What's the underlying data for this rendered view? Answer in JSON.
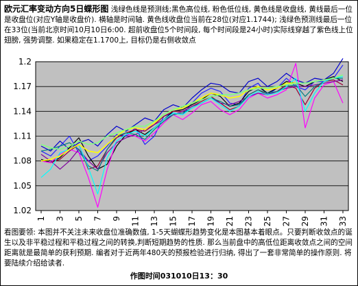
{
  "header": {
    "title": "欧元汇率变动方向5日蝶形图",
    "text": "浅绿色线是预测线;黑色高位线, 粉色低位线, 黄色线是收盘线, 黄线最后一位是收盘位(对应Y轴是收盘价). 横轴是时间轴. 黄色线收盘位当前在28位(对应1.1744); 浅绿色预测线最后一位在33位(当前北京时间10月10日6:00. 超前收盘位5个时间段, 每个时间段是24小时)实际线穿越了紫色线上位翅膀, 强势调整. 如果稳定在1.1700上, 目标仍是右侧收敛点"
  },
  "footer": {
    "text": "看图要领: 本图并不关注未来收盘位准确数值, 1-5天蝴蝶形趋势变化是本图基本着眼点。只要判断收敛点的诞生以及非平稳过程和平稳过程之间的转换,判断短期趋势的性质. 那么当前盘中的高低位距离收敛点之间的空间距离就是最简单的获利预期. 编者对于近两年480天的预报检验进行归纳, 得出了一套非常简单的操作原则. 将要陆续介绍给读者.",
    "time": "作图时间031010日13：30"
  },
  "colors": {
    "plot_bg": "#c0c0c0",
    "black": "#000000",
    "navy": "#0000cc",
    "blue": "#2222ff",
    "yellow": "#ffff00",
    "cyan": "#00ffff",
    "magenta": "#ff00ff",
    "dark_red": "#990033",
    "purple": "#8000a0",
    "teal": "#008080",
    "light_green": "#80ff80"
  },
  "chart_data": {
    "type": "line",
    "ylim": [
      1.02,
      1.2
    ],
    "yticks": [
      "1.02",
      "1.05",
      "1.08",
      "1.11",
      "1.14",
      "1.17",
      "1.2"
    ],
    "xlim": [
      1,
      33
    ],
    "xticks": [
      "1",
      "3",
      "5",
      "7",
      "9",
      "11",
      "13",
      "15",
      "17",
      "19",
      "21",
      "23",
      "25",
      "27",
      "29",
      "31",
      "33"
    ],
    "grid": "horizontal",
    "series": [
      {
        "color": "navy",
        "x": [
          1,
          2,
          3,
          4,
          5,
          6,
          7,
          8,
          9,
          10,
          11,
          12,
          13,
          14,
          15,
          16,
          17,
          18,
          19,
          20,
          21,
          22,
          23,
          24,
          25,
          26,
          27,
          28,
          29,
          30,
          31,
          32,
          33
        ],
        "values": [
          1.098,
          1.092,
          1.104,
          1.094,
          1.102,
          1.106,
          1.098,
          1.112,
          1.122,
          1.116,
          1.124,
          1.132,
          1.128,
          1.142,
          1.148,
          1.144,
          1.156,
          1.166,
          1.174,
          1.172,
          1.164,
          1.162,
          1.176,
          1.18,
          1.17,
          1.176,
          1.186,
          1.178,
          1.174,
          1.18,
          1.178,
          1.186,
          1.204
        ]
      },
      {
        "color": "blue",
        "x": [
          1,
          2,
          3,
          4,
          5,
          6,
          7,
          8,
          9,
          10,
          11,
          12,
          13,
          14,
          15,
          16,
          17,
          18,
          19,
          20,
          21,
          22,
          23,
          24,
          25,
          26,
          27,
          28,
          29,
          30,
          31,
          32,
          33
        ],
        "values": [
          1.092,
          1.086,
          1.098,
          1.11,
          1.09,
          1.08,
          1.086,
          1.098,
          1.112,
          1.11,
          1.12,
          1.1,
          1.11,
          1.134,
          1.138,
          1.136,
          1.15,
          1.162,
          1.168,
          1.164,
          1.15,
          1.148,
          1.168,
          1.174,
          1.16,
          1.168,
          1.18,
          1.17,
          1.166,
          1.176,
          1.176,
          1.18,
          1.196
        ]
      },
      {
        "color": "black",
        "x": [
          1,
          2,
          3,
          4,
          5,
          6,
          7,
          8,
          9,
          10,
          11,
          12,
          13,
          14,
          15,
          16,
          17,
          18,
          19,
          20,
          21,
          22,
          23,
          24,
          25,
          26,
          27,
          28,
          29,
          30,
          31,
          32,
          33
        ],
        "values": [
          1.082,
          1.078,
          1.084,
          1.096,
          1.108,
          1.086,
          1.07,
          1.076,
          1.098,
          1.112,
          1.118,
          1.112,
          1.12,
          1.13,
          1.14,
          1.142,
          1.148,
          1.154,
          1.162,
          1.158,
          1.146,
          1.15,
          1.164,
          1.17,
          1.162,
          1.168,
          1.176,
          1.174,
          1.17,
          1.176,
          1.178,
          1.182,
          1.176
        ]
      },
      {
        "color": "dark_red",
        "x": [
          1,
          2,
          3,
          4,
          5,
          6,
          7,
          8,
          9,
          10,
          11,
          12,
          13,
          14,
          15,
          16,
          17,
          18,
          19,
          20,
          21,
          22,
          23,
          24,
          25,
          26,
          27,
          28,
          29,
          30,
          31,
          32,
          33
        ],
        "values": [
          1.08,
          1.078,
          1.082,
          1.092,
          1.1,
          1.07,
          1.074,
          1.094,
          1.108,
          1.114,
          1.118,
          1.116,
          1.124,
          1.134,
          1.14,
          1.14,
          1.146,
          1.152,
          1.158,
          1.15,
          1.142,
          1.146,
          1.16,
          1.166,
          1.16,
          1.164,
          1.172,
          1.168,
          1.148,
          1.168,
          1.176,
          1.178,
          1.172
        ]
      },
      {
        "color": "magenta",
        "x": [
          1,
          2,
          3,
          4,
          5,
          6,
          7,
          8,
          9,
          10,
          11,
          12,
          13,
          14,
          15,
          16,
          17,
          18,
          19,
          20,
          21,
          22,
          23,
          24,
          25,
          26,
          27,
          28,
          29,
          30,
          31,
          32,
          33
        ],
        "values": [
          1.08,
          1.078,
          1.088,
          1.094,
          1.09,
          1.06,
          1.024,
          1.07,
          1.104,
          1.112,
          1.11,
          1.104,
          1.114,
          1.126,
          1.136,
          1.13,
          1.138,
          1.148,
          1.152,
          1.142,
          1.136,
          1.142,
          1.156,
          1.162,
          1.156,
          1.16,
          1.166,
          1.198,
          1.12,
          1.156,
          1.172,
          1.176,
          1.15
        ]
      },
      {
        "color": "purple",
        "x": [
          1,
          2,
          3,
          4,
          5,
          6,
          7,
          8,
          9,
          10,
          11,
          12,
          13,
          14,
          15,
          16,
          17,
          18,
          19,
          20,
          21,
          22,
          23,
          24,
          25,
          26,
          27,
          28,
          29,
          30,
          31,
          32,
          33
        ],
        "values": [
          1.088,
          1.08,
          1.07,
          1.08,
          1.094,
          1.08,
          1.07,
          1.09,
          1.102,
          1.108,
          1.112,
          1.118,
          1.124,
          1.13,
          1.136,
          1.14,
          1.146,
          1.15,
          1.156,
          1.15,
          1.148,
          1.152,
          1.158,
          1.162,
          1.16,
          1.164,
          1.168,
          1.17,
          1.17,
          1.172,
          1.174,
          1.176,
          1.178
        ]
      },
      {
        "color": "teal",
        "x": [
          1,
          2,
          3,
          4,
          5,
          6,
          7,
          8,
          9,
          10,
          11,
          12,
          13,
          14,
          15,
          16,
          17,
          18,
          19,
          20,
          21,
          22,
          23,
          24,
          25,
          26,
          27,
          28,
          29,
          30,
          31,
          32,
          33
        ],
        "values": [
          1.092,
          1.094,
          1.098,
          1.102,
          1.094,
          1.074,
          1.068,
          1.094,
          1.11,
          1.114,
          1.112,
          1.106,
          1.118,
          1.128,
          1.136,
          1.138,
          1.144,
          1.15,
          1.156,
          1.152,
          1.146,
          1.148,
          1.16,
          1.166,
          1.162,
          1.164,
          1.17,
          1.172,
          1.158,
          1.17,
          1.176,
          1.18,
          1.18
        ]
      },
      {
        "color": "cyan",
        "x": [
          1,
          2,
          3,
          4,
          5,
          6,
          7,
          8,
          9,
          10,
          11,
          12,
          13,
          14,
          15,
          16,
          17,
          18,
          19,
          20,
          21,
          22,
          23,
          24,
          25,
          26,
          27,
          28,
          29,
          30,
          31,
          32,
          33
        ],
        "values": [
          1.06,
          1.07,
          1.09,
          1.094,
          1.1,
          1.072,
          1.04,
          1.084,
          1.104,
          1.112,
          1.116,
          1.11,
          1.12,
          1.13,
          1.138,
          1.136,
          1.144,
          1.15,
          1.156,
          1.148,
          1.14,
          1.146,
          1.158,
          1.164,
          1.16,
          1.162,
          1.17,
          1.18,
          1.14,
          1.162,
          1.176,
          1.18,
          1.182
        ]
      },
      {
        "color": "yellow",
        "x": [
          1,
          2,
          3,
          4,
          5,
          6,
          7,
          8,
          9,
          10,
          11,
          12,
          13,
          14,
          15,
          16,
          17,
          18,
          19,
          20,
          21,
          22,
          23,
          24,
          25,
          26,
          27,
          28
        ],
        "values": [
          1.08,
          1.082,
          1.086,
          1.094,
          1.1,
          1.092,
          1.09,
          1.1,
          1.11,
          1.118,
          1.12,
          1.118,
          1.126,
          1.136,
          1.142,
          1.144,
          1.15,
          1.156,
          1.162,
          1.16,
          1.156,
          1.158,
          1.166,
          1.17,
          1.166,
          1.168,
          1.174,
          1.1744
        ]
      },
      {
        "color": "light_green",
        "x": [
          1,
          2,
          3,
          4,
          5,
          6,
          7,
          8,
          9,
          10,
          11,
          12,
          13,
          14,
          15,
          16,
          17,
          18,
          19,
          20,
          21,
          22,
          23,
          24,
          25,
          26,
          27,
          28,
          29,
          30,
          31,
          32,
          33
        ],
        "values": [
          1.1,
          1.096,
          1.094,
          1.098,
          1.104,
          1.1,
          1.102,
          1.11,
          1.114,
          1.118,
          1.122,
          1.122,
          1.128,
          1.136,
          1.142,
          1.146,
          1.15,
          1.154,
          1.158,
          1.16,
          1.16,
          1.162,
          1.166,
          1.168,
          1.168,
          1.17,
          1.172,
          1.174,
          1.174,
          1.176,
          1.178,
          1.18,
          1.184
        ]
      }
    ]
  }
}
